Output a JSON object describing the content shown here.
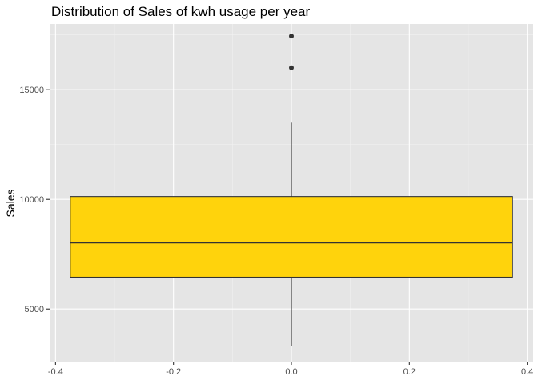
{
  "chart_data": {
    "type": "boxplot",
    "title": "Distribution of Sales of kwh usage per year",
    "xlabel": "",
    "ylabel": "Sales",
    "xlim": [
      -0.41,
      0.41
    ],
    "ylim": [
      2600,
      18000
    ],
    "x_ticks": [
      -0.4,
      -0.2,
      0,
      0.2,
      0.4
    ],
    "x_tick_labels": [
      "-0.4",
      "-0.2",
      "0.0",
      "0.2",
      "0.4"
    ],
    "y_ticks": [
      5000,
      10000,
      15000
    ],
    "y_tick_labels": [
      "5000",
      "10000",
      "15000"
    ],
    "grid": true,
    "legend": "none",
    "series": [
      {
        "x": 0,
        "box_width": 0.75,
        "whisker_low": 3300,
        "q1": 6450,
        "median": 8030,
        "q3": 10130,
        "whisker_high": 13500,
        "outliers": [
          16000,
          17450
        ]
      }
    ],
    "colors": {
      "panel_background": "#E5E5E5",
      "grid_major": "#FFFFFF",
      "grid_minor": "#F2F2F2",
      "box_fill": "#FFD30C",
      "box_outline": "#333333",
      "outlier": "#333333",
      "axis_text": "#4D4D4D",
      "title_text": "#000000"
    }
  }
}
